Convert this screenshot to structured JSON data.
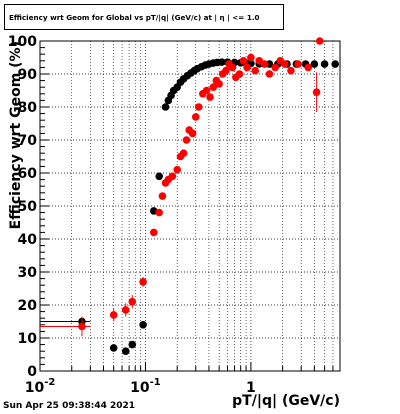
{
  "chart_data": {
    "type": "scatter",
    "title": "Efficiency wrt Geom for Global vs pT/|q| (GeV/c) at | η | <= 1.0",
    "xlabel": "pT/|q| (GeV/c)",
    "ylabel": "Efficiency wrt Geom (%)",
    "x_scale": "log",
    "xlim": [
      0.01,
      7
    ],
    "ylim": [
      0,
      100
    ],
    "x_ticks": [
      {
        "value": 0.01,
        "base": "10",
        "exp": "-2"
      },
      {
        "value": 0.1,
        "base": "10",
        "exp": "-1"
      },
      {
        "value": 1,
        "base": "1",
        "exp": ""
      }
    ],
    "y_ticks": [
      0,
      10,
      20,
      30,
      40,
      50,
      60,
      70,
      80,
      90,
      100
    ],
    "y_tick_labels": [
      "0",
      "10",
      "20",
      "30",
      "40",
      "50",
      "60",
      "70",
      "80",
      "90",
      "100"
    ],
    "grid": true,
    "legend": "none",
    "series": [
      {
        "color": "#000000",
        "points": [
          {
            "x": 0.025,
            "y": 15,
            "xerr": [
              0.015,
              0.005
            ]
          },
          {
            "x": 0.05,
            "y": 7,
            "xerr": [
              0.004,
              0.004
            ]
          },
          {
            "x": 0.065,
            "y": 6,
            "xerr": [
              0.004,
              0.004
            ]
          },
          {
            "x": 0.075,
            "y": 8,
            "xerr": [
              0.004,
              0.004
            ]
          },
          {
            "x": 0.095,
            "y": 14,
            "xerr": [
              0.005,
              0.005
            ]
          },
          {
            "x": 0.12,
            "y": 48.5
          },
          {
            "x": 0.135,
            "y": 59
          },
          {
            "x": 0.155,
            "y": 80
          },
          {
            "x": 0.165,
            "y": 82
          },
          {
            "x": 0.175,
            "y": 83.5
          },
          {
            "x": 0.185,
            "y": 85
          },
          {
            "x": 0.2,
            "y": 86
          },
          {
            "x": 0.215,
            "y": 87.5
          },
          {
            "x": 0.23,
            "y": 88.5
          },
          {
            "x": 0.25,
            "y": 89.5
          },
          {
            "x": 0.27,
            "y": 90.3
          },
          {
            "x": 0.29,
            "y": 91
          },
          {
            "x": 0.31,
            "y": 91.6
          },
          {
            "x": 0.34,
            "y": 92.2
          },
          {
            "x": 0.37,
            "y": 92.7
          },
          {
            "x": 0.4,
            "y": 93
          },
          {
            "x": 0.44,
            "y": 93.3
          },
          {
            "x": 0.48,
            "y": 93.5
          },
          {
            "x": 0.53,
            "y": 93.6
          },
          {
            "x": 0.6,
            "y": 93.6
          },
          {
            "x": 0.7,
            "y": 93.5
          },
          {
            "x": 0.8,
            "y": 93.4
          },
          {
            "x": 0.9,
            "y": 93.3
          },
          {
            "x": 1.0,
            "y": 93.2
          },
          {
            "x": 1.2,
            "y": 93.1
          },
          {
            "x": 1.5,
            "y": 93
          },
          {
            "x": 1.8,
            "y": 93
          },
          {
            "x": 2.2,
            "y": 93
          },
          {
            "x": 2.7,
            "y": 93
          },
          {
            "x": 3.3,
            "y": 93
          },
          {
            "x": 4.0,
            "y": 93
          },
          {
            "x": 5.0,
            "y": 93
          },
          {
            "x": 6.3,
            "y": 93
          }
        ]
      },
      {
        "color": "#ff0000",
        "points": [
          {
            "x": 0.025,
            "y": 13.5,
            "xerr": [
              0.015,
              0.005
            ],
            "yerr": 3
          },
          {
            "x": 0.05,
            "y": 17,
            "xerr": [
              0.004,
              0.004
            ],
            "yerr": 2
          },
          {
            "x": 0.065,
            "y": 18.5,
            "xerr": [
              0.004,
              0.004
            ],
            "yerr": 2
          },
          {
            "x": 0.075,
            "y": 21,
            "xerr": [
              0.004,
              0.004
            ],
            "yerr": 2
          },
          {
            "x": 0.095,
            "y": 27,
            "xerr": [
              0.005,
              0.005
            ],
            "yerr": 1.5
          },
          {
            "x": 0.12,
            "y": 42
          },
          {
            "x": 0.135,
            "y": 48
          },
          {
            "x": 0.145,
            "y": 53
          },
          {
            "x": 0.155,
            "y": 57
          },
          {
            "x": 0.165,
            "y": 58
          },
          {
            "x": 0.18,
            "y": 59
          },
          {
            "x": 0.2,
            "y": 61
          },
          {
            "x": 0.215,
            "y": 65
          },
          {
            "x": 0.23,
            "y": 66
          },
          {
            "x": 0.245,
            "y": 70
          },
          {
            "x": 0.26,
            "y": 73
          },
          {
            "x": 0.28,
            "y": 72
          },
          {
            "x": 0.3,
            "y": 77
          },
          {
            "x": 0.32,
            "y": 80
          },
          {
            "x": 0.35,
            "y": 84
          },
          {
            "x": 0.38,
            "y": 85
          },
          {
            "x": 0.41,
            "y": 83
          },
          {
            "x": 0.44,
            "y": 86
          },
          {
            "x": 0.47,
            "y": 88
          },
          {
            "x": 0.5,
            "y": 87
          },
          {
            "x": 0.54,
            "y": 90
          },
          {
            "x": 0.58,
            "y": 91
          },
          {
            "x": 0.62,
            "y": 93
          },
          {
            "x": 0.67,
            "y": 92
          },
          {
            "x": 0.72,
            "y": 89
          },
          {
            "x": 0.78,
            "y": 90
          },
          {
            "x": 0.85,
            "y": 94
          },
          {
            "x": 0.92,
            "y": 92
          },
          {
            "x": 1.0,
            "y": 95
          },
          {
            "x": 1.1,
            "y": 91
          },
          {
            "x": 1.2,
            "y": 94
          },
          {
            "x": 1.35,
            "y": 93
          },
          {
            "x": 1.5,
            "y": 90
          },
          {
            "x": 1.7,
            "y": 92
          },
          {
            "x": 1.9,
            "y": 94
          },
          {
            "x": 2.1,
            "y": 93
          },
          {
            "x": 2.4,
            "y": 91
          },
          {
            "x": 2.8,
            "y": 93
          },
          {
            "x": 3.5,
            "y": 92
          },
          {
            "x": 4.2,
            "y": 84.5,
            "yerr": 6
          },
          {
            "x": 4.5,
            "y": 100
          }
        ]
      }
    ]
  },
  "footer": {
    "timestamp": "Sun Apr 25 09:38:44 2021"
  }
}
